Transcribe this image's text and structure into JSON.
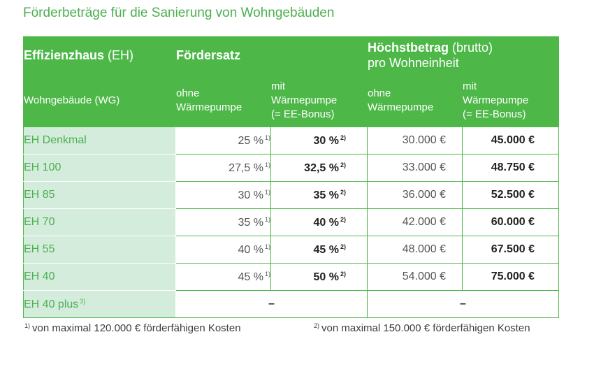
{
  "title": "Förderbeträge für die Sanierung von Wohngebäuden",
  "header": {
    "col1_bold": "Effizienzhaus",
    "col1_light": " (EH)",
    "col2_bold": "Fördersatz",
    "col3_bold": "Höchstbetrag",
    "col3_light": " (brutto)",
    "col3_line2": "pro Wohneinheit",
    "sub1": "Wohngebäude (WG)",
    "sub2_l1": "ohne",
    "sub2_l2": "Wärmepumpe",
    "sub3_l1": "mit",
    "sub3_l2": "Wärmepumpe",
    "sub3_l3": "(= EE-Bonus)",
    "sub4_l1": "ohne",
    "sub4_l2": "Wärmepumpe",
    "sub5_l1": "mit",
    "sub5_l2": "Wärmepumpe",
    "sub5_l3": "(= EE-Bonus)"
  },
  "rows": [
    {
      "label": "EH Denkmal",
      "rate": "25 %",
      "rate_ee": "30 %",
      "max": "30.000 €",
      "max_ee": "45.000 €"
    },
    {
      "label": "EH 100",
      "rate": "27,5 %",
      "rate_ee": "32,5 %",
      "max": "33.000 €",
      "max_ee": "48.750 €"
    },
    {
      "label": "EH 85",
      "rate": "30 %",
      "rate_ee": "35 %",
      "max": "36.000 €",
      "max_ee": "52.500 €"
    },
    {
      "label": "EH 70",
      "rate": "35 %",
      "rate_ee": "40 %",
      "max": "42.000 €",
      "max_ee": "60.000 €"
    },
    {
      "label": "EH 55",
      "rate": "40 %",
      "rate_ee": "45 %",
      "max": "48.000 €",
      "max_ee": "67.500 €"
    },
    {
      "label": "EH 40",
      "rate": "45 %",
      "rate_ee": "50 %",
      "max": "54.000 €",
      "max_ee": "75.000 €"
    }
  ],
  "last_row": {
    "label": "EH 40 plus",
    "label_sup": "3)",
    "rate": "–",
    "max": "–"
  },
  "fn_marker_1": "1)",
  "fn_marker_2": "2)",
  "footnotes": {
    "fn1_marker": "1)",
    "fn1_text": "von maximal 120.000 € förderfähigen Kosten",
    "fn2_marker": "2)",
    "fn2_text": "von maximal 150.000 € förderfähigen Kosten"
  },
  "colors": {
    "green": "#4db848",
    "label_bg": "#d4ecdb",
    "title_green": "#4caf50"
  }
}
